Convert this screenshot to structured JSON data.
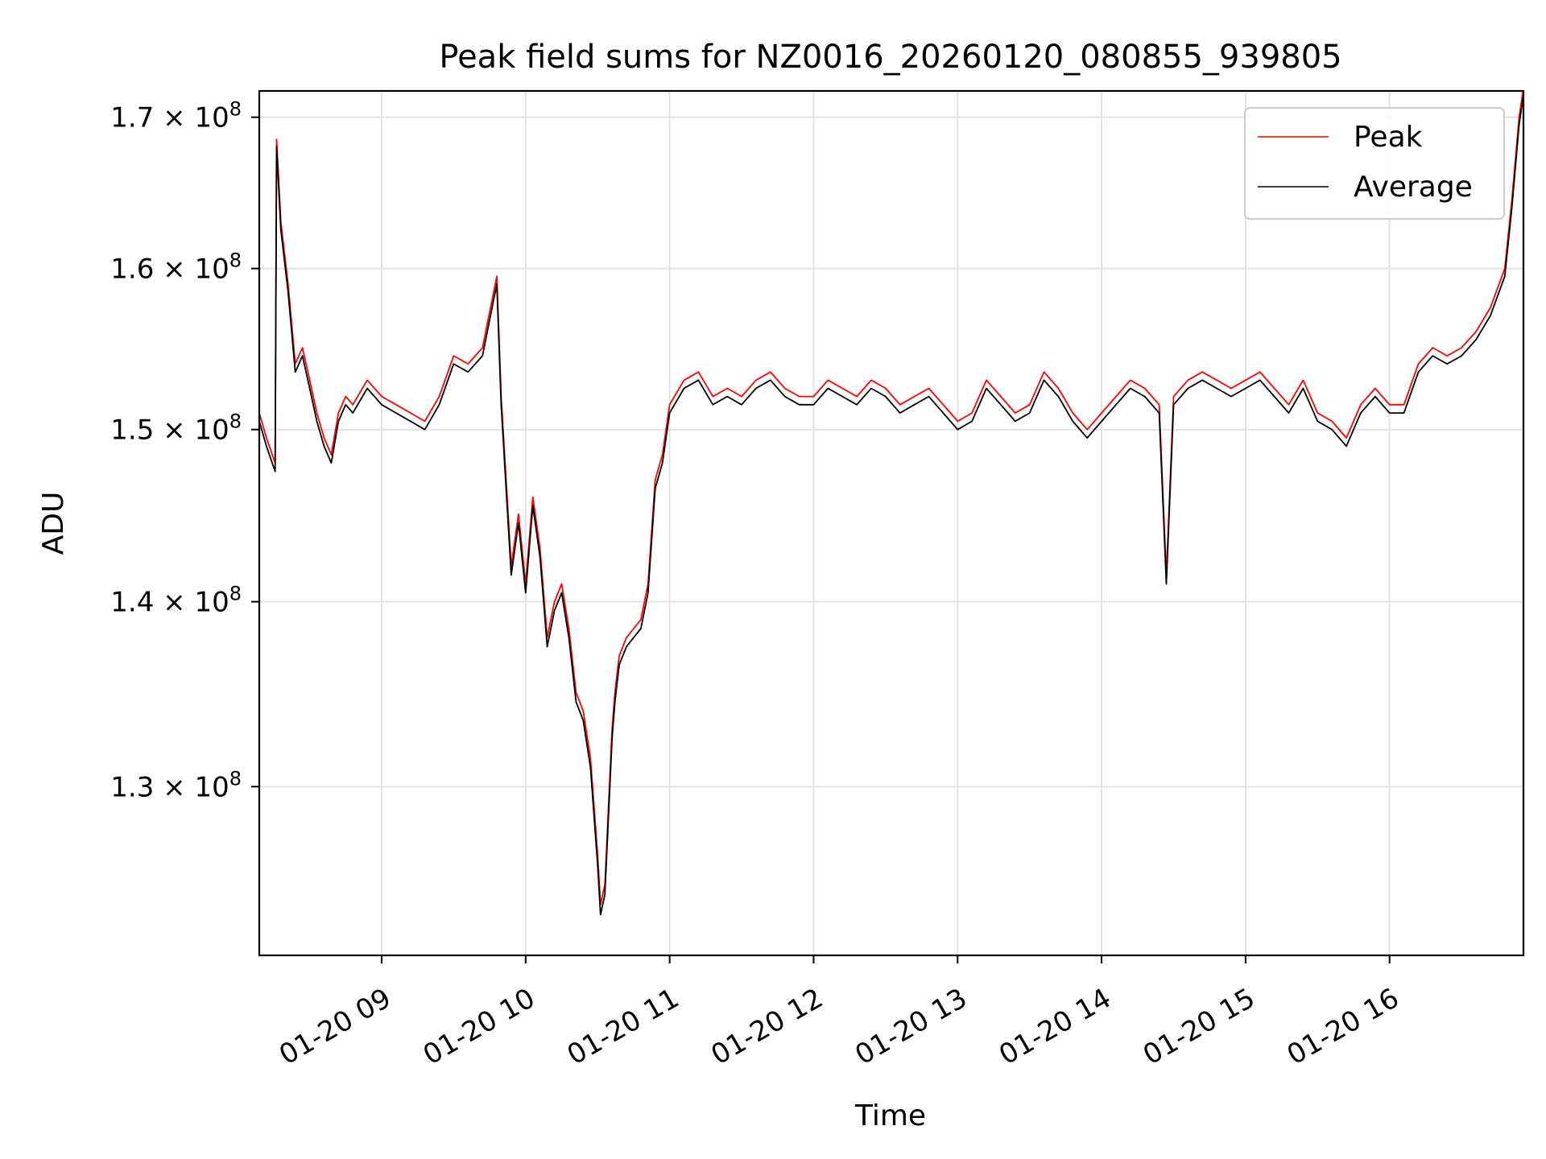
{
  "chart_data": {
    "type": "line",
    "title": "Peak field sums for NZ0016_20260120_080855_939805",
    "xlabel": "Time",
    "ylabel": "ADU",
    "xlim": [
      8.15,
      16.93
    ],
    "ylim": [
      121500000,
      171800000
    ],
    "yscale": "log",
    "grid": true,
    "legend_position": "top-right",
    "x_ticks": [
      {
        "value": 9,
        "label": "01-20 09"
      },
      {
        "value": 10,
        "label": "01-20 10"
      },
      {
        "value": 11,
        "label": "01-20 11"
      },
      {
        "value": 12,
        "label": "01-20 12"
      },
      {
        "value": 13,
        "label": "01-20 13"
      },
      {
        "value": 14,
        "label": "01-20 14"
      },
      {
        "value": 15,
        "label": "01-20 15"
      },
      {
        "value": 16,
        "label": "01-20 16"
      }
    ],
    "y_ticks": [
      {
        "value": 130000000,
        "mantissa": "1.3",
        "base": "10",
        "exponent": "8"
      },
      {
        "value": 140000000,
        "mantissa": "1.4",
        "base": "10",
        "exponent": "8"
      },
      {
        "value": 150000000,
        "mantissa": "1.5",
        "base": "10",
        "exponent": "8"
      },
      {
        "value": 160000000,
        "mantissa": "1.6",
        "base": "10",
        "exponent": "8"
      },
      {
        "value": 170000000,
        "mantissa": "1.7",
        "base": "10",
        "exponent": "8"
      }
    ],
    "series": [
      {
        "name": "Peak",
        "color": "#ff0000",
        "x_hours": [
          8.15,
          8.2,
          8.26,
          8.27,
          8.3,
          8.35,
          8.4,
          8.45,
          8.5,
          8.55,
          8.6,
          8.65,
          8.7,
          8.75,
          8.8,
          8.9,
          9.0,
          9.1,
          9.2,
          9.3,
          9.4,
          9.5,
          9.6,
          9.7,
          9.8,
          9.83,
          9.9,
          9.95,
          10.0,
          10.05,
          10.1,
          10.15,
          10.2,
          10.25,
          10.3,
          10.35,
          10.4,
          10.45,
          10.5,
          10.52,
          10.55,
          10.6,
          10.62,
          10.65,
          10.7,
          10.75,
          10.8,
          10.85,
          10.9,
          10.95,
          11.0,
          11.1,
          11.2,
          11.3,
          11.4,
          11.5,
          11.6,
          11.7,
          11.8,
          11.9,
          12.0,
          12.1,
          12.2,
          12.3,
          12.4,
          12.5,
          12.6,
          12.7,
          12.8,
          12.9,
          13.0,
          13.1,
          13.2,
          13.3,
          13.4,
          13.5,
          13.6,
          13.7,
          13.8,
          13.9,
          14.0,
          14.1,
          14.2,
          14.3,
          14.4,
          14.45,
          14.5,
          14.6,
          14.7,
          14.8,
          14.9,
          15.0,
          15.1,
          15.2,
          15.3,
          15.4,
          15.5,
          15.6,
          15.7,
          15.8,
          15.9,
          16.0,
          16.1,
          16.2,
          16.3,
          16.4,
          16.5,
          16.6,
          16.7,
          16.8,
          16.85,
          16.9,
          16.93
        ],
        "values": [
          151000000,
          149500000,
          148000000,
          168500000,
          163000000,
          159000000,
          154000000,
          155000000,
          153000000,
          151000000,
          149500000,
          148500000,
          151000000,
          152000000,
          151500000,
          153000000,
          152000000,
          151500000,
          151000000,
          150500000,
          152000000,
          154500000,
          154000000,
          155000000,
          159500000,
          152000000,
          142000000,
          145000000,
          141000000,
          146000000,
          143000000,
          138000000,
          140000000,
          141000000,
          138500000,
          135000000,
          134000000,
          131500000,
          126500000,
          124000000,
          125000000,
          133000000,
          135000000,
          137000000,
          138000000,
          138500000,
          139000000,
          141000000,
          147000000,
          148500000,
          151500000,
          153000000,
          153500000,
          152000000,
          152500000,
          152000000,
          153000000,
          153500000,
          152500000,
          152000000,
          152000000,
          153000000,
          152500000,
          152000000,
          153000000,
          152500000,
          151500000,
          152000000,
          152500000,
          151500000,
          150500000,
          151000000,
          153000000,
          152000000,
          151000000,
          151500000,
          153500000,
          152500000,
          151000000,
          150000000,
          151000000,
          152000000,
          153000000,
          152500000,
          151500000,
          141500000,
          152000000,
          153000000,
          153500000,
          153000000,
          152500000,
          153000000,
          153500000,
          152500000,
          151500000,
          153000000,
          151000000,
          150500000,
          149500000,
          151500000,
          152500000,
          151500000,
          151500000,
          154000000,
          155000000,
          154500000,
          155000000,
          156000000,
          157500000,
          160000000,
          164500000,
          170000000,
          172000000
        ]
      },
      {
        "name": "Average",
        "color": "#000000",
        "x_hours": [
          8.15,
          8.2,
          8.26,
          8.27,
          8.3,
          8.35,
          8.4,
          8.45,
          8.5,
          8.55,
          8.6,
          8.65,
          8.7,
          8.75,
          8.8,
          8.9,
          9.0,
          9.1,
          9.2,
          9.3,
          9.4,
          9.5,
          9.6,
          9.7,
          9.8,
          9.83,
          9.9,
          9.95,
          10.0,
          10.05,
          10.1,
          10.15,
          10.2,
          10.25,
          10.3,
          10.35,
          10.4,
          10.45,
          10.5,
          10.52,
          10.55,
          10.6,
          10.62,
          10.65,
          10.7,
          10.75,
          10.8,
          10.85,
          10.9,
          10.95,
          11.0,
          11.1,
          11.2,
          11.3,
          11.4,
          11.5,
          11.6,
          11.7,
          11.8,
          11.9,
          12.0,
          12.1,
          12.2,
          12.3,
          12.4,
          12.5,
          12.6,
          12.7,
          12.8,
          12.9,
          13.0,
          13.1,
          13.2,
          13.3,
          13.4,
          13.5,
          13.6,
          13.7,
          13.8,
          13.9,
          14.0,
          14.1,
          14.2,
          14.3,
          14.4,
          14.45,
          14.5,
          14.6,
          14.7,
          14.8,
          14.9,
          15.0,
          15.1,
          15.2,
          15.3,
          15.4,
          15.5,
          15.6,
          15.7,
          15.8,
          15.9,
          16.0,
          16.1,
          16.2,
          16.3,
          16.4,
          16.5,
          16.6,
          16.7,
          16.8,
          16.85,
          16.9,
          16.93
        ],
        "values": [
          150500000,
          149000000,
          147500000,
          168000000,
          162500000,
          158500000,
          153500000,
          154500000,
          152500000,
          150500000,
          149000000,
          148000000,
          150500000,
          151500000,
          151000000,
          152500000,
          151500000,
          151000000,
          150500000,
          150000000,
          151500000,
          154000000,
          153500000,
          154500000,
          159000000,
          151500000,
          141500000,
          144500000,
          140500000,
          145500000,
          142500000,
          137500000,
          139500000,
          140500000,
          138000000,
          134500000,
          133500000,
          131000000,
          126000000,
          123500000,
          124500000,
          132500000,
          134500000,
          136500000,
          137500000,
          138000000,
          138500000,
          140500000,
          146500000,
          148000000,
          151000000,
          152500000,
          153000000,
          151500000,
          152000000,
          151500000,
          152500000,
          153000000,
          152000000,
          151500000,
          151500000,
          152500000,
          152000000,
          151500000,
          152500000,
          152000000,
          151000000,
          151500000,
          152000000,
          151000000,
          150000000,
          150500000,
          152500000,
          151500000,
          150500000,
          151000000,
          153000000,
          152000000,
          150500000,
          149500000,
          150500000,
          151500000,
          152500000,
          152000000,
          151000000,
          141000000,
          151500000,
          152500000,
          153000000,
          152500000,
          152000000,
          152500000,
          153000000,
          152000000,
          151000000,
          152500000,
          150500000,
          150000000,
          149000000,
          151000000,
          152000000,
          151000000,
          151000000,
          153500000,
          154500000,
          154000000,
          154500000,
          155500000,
          157000000,
          159500000,
          164000000,
          169500000,
          171500000
        ]
      }
    ]
  }
}
